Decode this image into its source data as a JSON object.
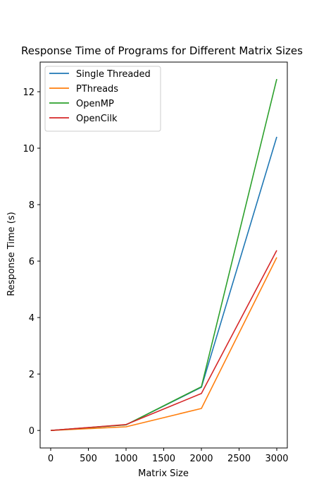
{
  "chart_data": {
    "type": "line",
    "title": "Response Time of Programs for Different Matrix Sizes",
    "xlabel": "Matrix Size",
    "ylabel": "Response Time (s)",
    "xlim": [
      -140,
      3140
    ],
    "ylim": [
      -0.62,
      13.05
    ],
    "xticks": [
      0,
      500,
      1000,
      1500,
      2000,
      2500,
      3000
    ],
    "yticks": [
      0,
      2,
      4,
      6,
      8,
      10,
      12
    ],
    "x": [
      0,
      1000,
      2000,
      3000
    ],
    "series": [
      {
        "name": "Single Threaded",
        "color": "#1f77b4",
        "values": [
          0.0,
          0.2,
          1.53,
          10.4
        ]
      },
      {
        "name": "PThreads",
        "color": "#ff7f0e",
        "values": [
          0.0,
          0.13,
          0.78,
          6.13
        ]
      },
      {
        "name": "OpenMP",
        "color": "#2ca02c",
        "values": [
          0.0,
          0.2,
          1.55,
          12.45
        ]
      },
      {
        "name": "OpenCilk",
        "color": "#d62728",
        "values": [
          0.0,
          0.21,
          1.31,
          6.38
        ]
      }
    ],
    "legend_position": "upper-left",
    "grid": false
  }
}
